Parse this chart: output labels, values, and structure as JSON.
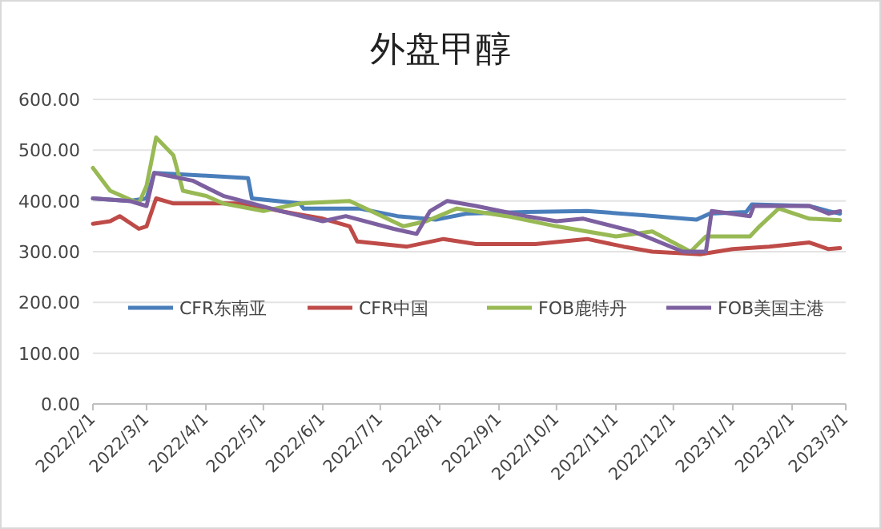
{
  "chart_data": {
    "type": "line",
    "title": "外盘甲醇",
    "ylim": [
      0,
      600
    ],
    "yticks": [
      {
        "value": 0,
        "label": "0.00"
      },
      {
        "value": 100,
        "label": "100.00"
      },
      {
        "value": 200,
        "label": "200.00"
      },
      {
        "value": 300,
        "label": "300.00"
      },
      {
        "value": 400,
        "label": "400.00"
      },
      {
        "value": 500,
        "label": "500.00"
      },
      {
        "value": 600,
        "label": "600.00"
      }
    ],
    "xlim": [
      "2022-02-01",
      "2023-03-01"
    ],
    "xticks": [
      {
        "value": "2022-02-01",
        "label": "2022/2/1"
      },
      {
        "value": "2022-03-01",
        "label": "2022/3/1"
      },
      {
        "value": "2022-04-01",
        "label": "2022/4/1"
      },
      {
        "value": "2022-05-01",
        "label": "2022/5/1"
      },
      {
        "value": "2022-06-01",
        "label": "2022/6/1"
      },
      {
        "value": "2022-07-01",
        "label": "2022/7/1"
      },
      {
        "value": "2022-08-01",
        "label": "2022/8/1"
      },
      {
        "value": "2022-09-01",
        "label": "2022/9/1"
      },
      {
        "value": "2022-10-01",
        "label": "2022/10/1"
      },
      {
        "value": "2022-11-01",
        "label": "2022/11/1"
      },
      {
        "value": "2022-12-01",
        "label": "2022/12/1"
      },
      {
        "value": "2023-01-01",
        "label": "2023/1/1"
      },
      {
        "value": "2023-02-01",
        "label": "2023/2/1"
      },
      {
        "value": "2023-03-01",
        "label": "2023/3/1"
      }
    ],
    "grid": "y",
    "legend": "bottom",
    "marker": "none",
    "line_style": "solid",
    "series": [
      {
        "name": "CFR东南亚",
        "color": "#4a7ebb",
        "x": [
          "2022-02-01",
          "2022-02-20",
          "2022-03-01",
          "2022-03-05",
          "2022-03-30",
          "2022-04-23",
          "2022-04-25",
          "2022-05-20",
          "2022-05-22",
          "2022-06-20",
          "2022-07-10",
          "2022-07-30",
          "2022-08-15",
          "2022-09-15",
          "2022-10-17",
          "2022-11-15",
          "2022-12-13",
          "2022-12-20",
          "2023-01-08",
          "2023-01-11",
          "2023-02-10",
          "2023-02-20",
          "2023-02-26"
        ],
        "values": [
          405,
          400,
          405,
          455,
          450,
          445,
          405,
          395,
          385,
          385,
          370,
          363,
          375,
          378,
          380,
          372,
          363,
          375,
          378,
          393,
          390,
          380,
          375
        ]
      },
      {
        "name": "CFR中国",
        "color": "#be4b48",
        "x": [
          "2022-02-01",
          "2022-02-10",
          "2022-02-15",
          "2022-02-25",
          "2022-03-01",
          "2022-03-06",
          "2022-03-15",
          "2022-04-20",
          "2022-05-10",
          "2022-06-01",
          "2022-06-15",
          "2022-06-19",
          "2022-07-15",
          "2022-08-03",
          "2022-08-20",
          "2022-09-20",
          "2022-10-17",
          "2022-11-05",
          "2022-11-20",
          "2022-12-15",
          "2023-01-01",
          "2023-01-20",
          "2023-02-10",
          "2023-02-20",
          "2023-02-26"
        ],
        "values": [
          355,
          360,
          370,
          345,
          350,
          405,
          395,
          395,
          380,
          365,
          350,
          320,
          310,
          325,
          315,
          315,
          325,
          310,
          300,
          295,
          305,
          310,
          318,
          305,
          307
        ]
      },
      {
        "name": "FOB鹿特丹",
        "color": "#98b954",
        "x": [
          "2022-02-01",
          "2022-02-10",
          "2022-02-25",
          "2022-03-01",
          "2022-03-06",
          "2022-03-15",
          "2022-03-20",
          "2022-04-01",
          "2022-04-10",
          "2022-05-01",
          "2022-05-20",
          "2022-06-15",
          "2022-07-13",
          "2022-07-25",
          "2022-08-10",
          "2022-09-05",
          "2022-10-01",
          "2022-11-01",
          "2022-11-20",
          "2022-12-10",
          "2022-12-18",
          "2023-01-10",
          "2023-01-15",
          "2023-01-25",
          "2023-02-10",
          "2023-02-26"
        ],
        "values": [
          465,
          420,
          395,
          430,
          525,
          490,
          420,
          410,
          395,
          380,
          395,
          400,
          350,
          360,
          385,
          370,
          350,
          330,
          340,
          300,
          330,
          330,
          350,
          385,
          365,
          362
        ]
      },
      {
        "name": "FOB美国主港",
        "color": "#7d60a0",
        "x": [
          "2022-02-01",
          "2022-02-20",
          "2022-03-01",
          "2022-03-05",
          "2022-03-25",
          "2022-04-10",
          "2022-05-10",
          "2022-06-01",
          "2022-06-13",
          "2022-07-08",
          "2022-07-20",
          "2022-07-27",
          "2022-08-05",
          "2022-08-20",
          "2022-09-15",
          "2022-10-01",
          "2022-10-15",
          "2022-11-10",
          "2022-12-06",
          "2022-12-18",
          "2022-12-21",
          "2023-01-10",
          "2023-01-12",
          "2023-02-10",
          "2023-02-20",
          "2023-02-26"
        ],
        "values": [
          405,
          400,
          390,
          455,
          440,
          410,
          380,
          360,
          370,
          345,
          335,
          380,
          400,
          390,
          370,
          360,
          365,
          340,
          300,
          300,
          380,
          370,
          390,
          390,
          375,
          380
        ]
      }
    ]
  }
}
